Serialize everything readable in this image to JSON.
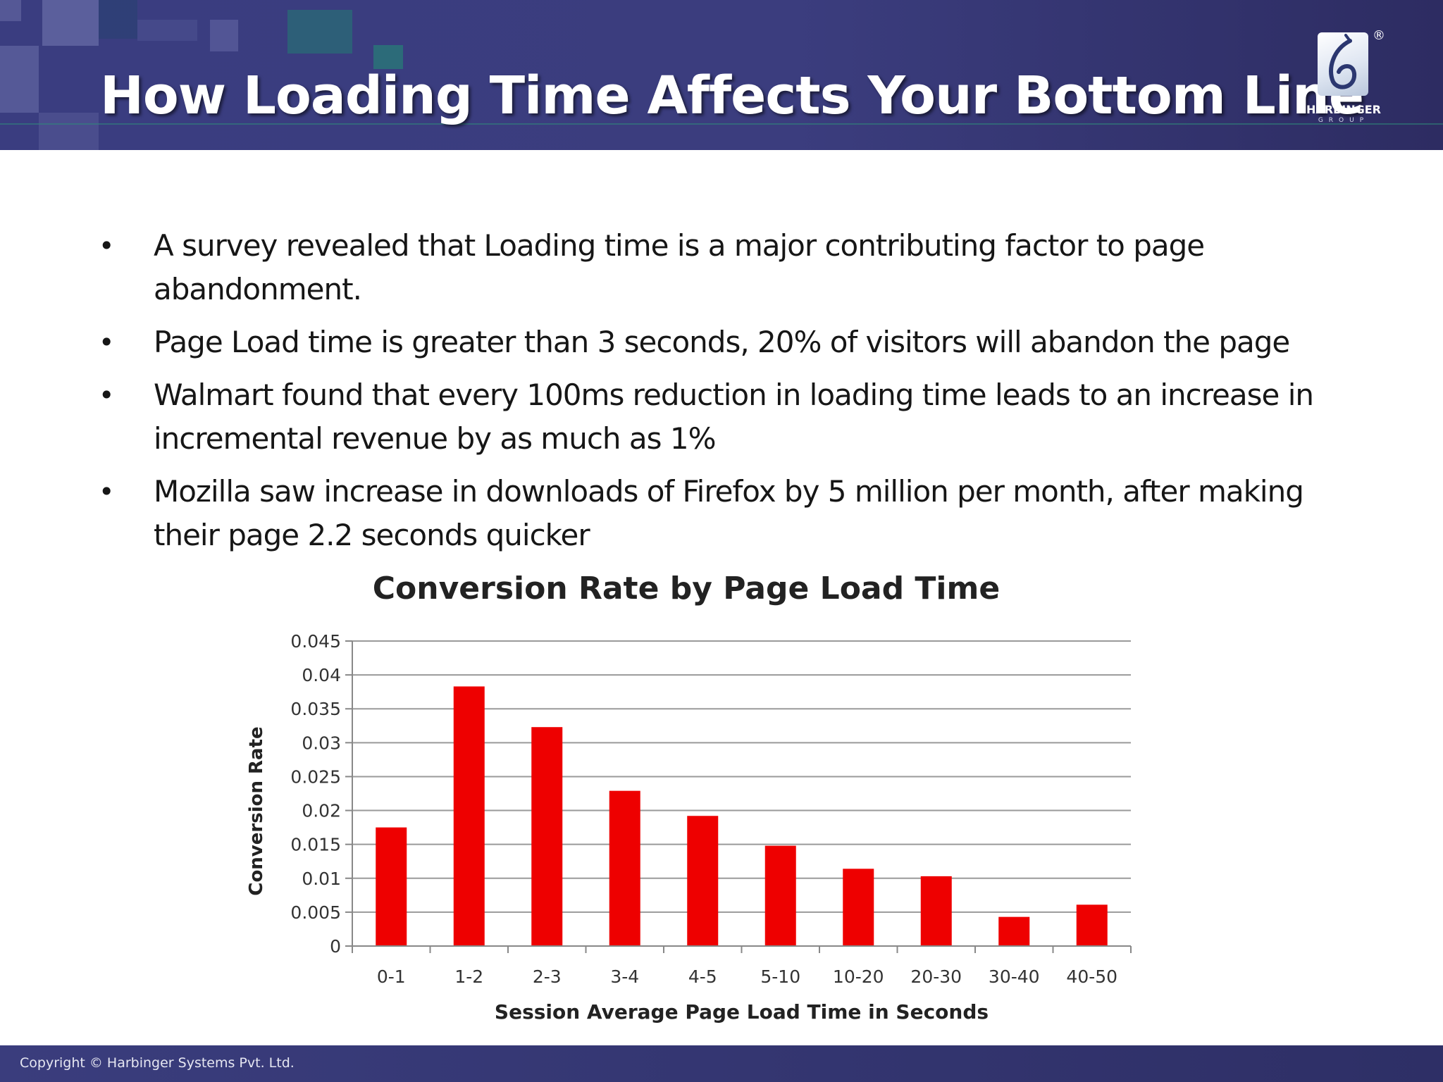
{
  "header": {
    "title": "How Loading Time Affects Your Bottom Line",
    "logo": {
      "name": "HARBINGER",
      "sub": "GROUP",
      "registered": "®"
    }
  },
  "bullets": [
    {
      "text": "A survey revealed that Loading time is a major contributing factor to page abandonment."
    },
    {
      "text": "Page Load time is greater than 3 seconds, 20% of visitors will abandon the page"
    },
    {
      "text": "Walmart found that every 100ms reduction in loading time leads to an increase in incremental revenue by as much as 1%"
    },
    {
      "text": "Mozilla saw increase in downloads of Firefox by 5 million per month, after making their page 2.2 seconds quicker"
    }
  ],
  "chart_data": {
    "type": "bar",
    "title": "Conversion Rate by Page Load Time",
    "xlabel": "Session Average Page Load Time in Seconds",
    "ylabel": "Conversion Rate",
    "categories": [
      "0-1",
      "1-2",
      "2-3",
      "3-4",
      "4-5",
      "5-10",
      "10-20",
      "20-30",
      "30-40",
      "40-50"
    ],
    "values": [
      0.0175,
      0.0383,
      0.0323,
      0.0229,
      0.0192,
      0.0148,
      0.0114,
      0.0103,
      0.0043,
      0.0061
    ],
    "ylim": [
      0,
      0.045
    ],
    "yticks": [
      "0",
      "0.005",
      "0.01",
      "0.015",
      "0.02",
      "0.025",
      "0.03",
      "0.035",
      "0.04",
      "0.045"
    ],
    "grid": true,
    "bar_color": "#ee0000"
  },
  "footer": {
    "copyright": "Copyright © Harbinger Systems Pvt. Ltd."
  },
  "colors": {
    "header": "#3b3d7e",
    "footer": "#2e2f66",
    "bars": "#ee0000"
  }
}
